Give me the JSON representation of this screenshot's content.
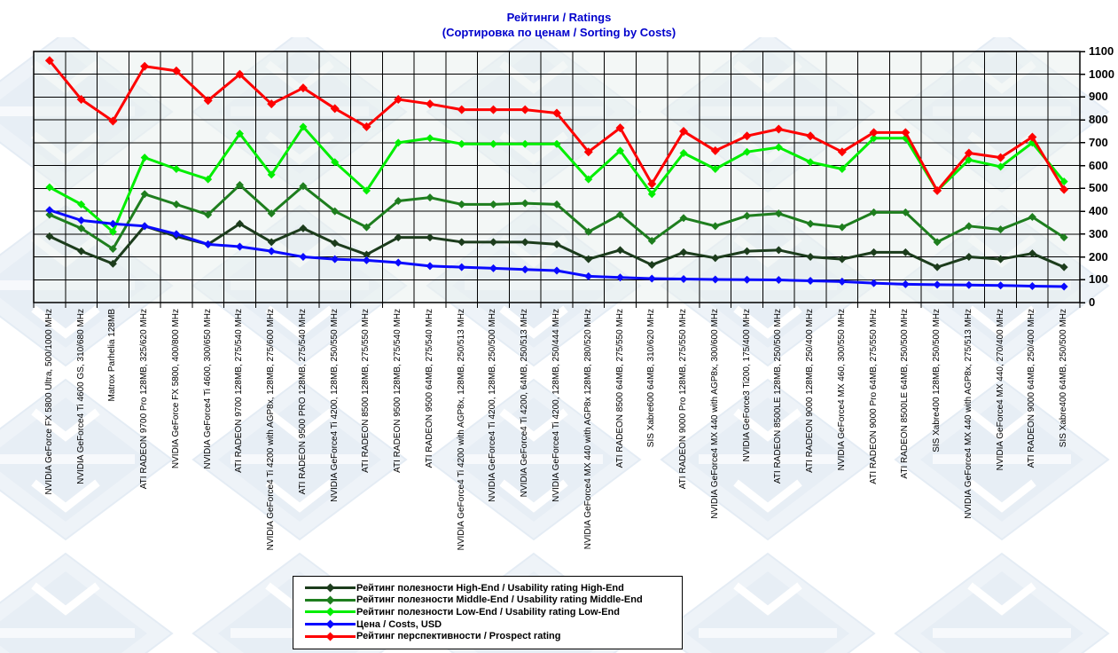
{
  "title": {
    "line1": "Рейтинги / Ratings",
    "line2": "(Сортировка по ценам / Sorting by Costs)"
  },
  "colors": {
    "title": "#0000cc",
    "grid": "#000000",
    "plot_background": "#eaf1ef",
    "watermark": "#ccdaea",
    "high_end": "#1c3c1c",
    "middle_end": "#1e7e1e",
    "low_end": "#00ee00",
    "costs": "#0a0aff",
    "prospect": "#fe0000"
  },
  "chart_data": {
    "type": "line",
    "title": "Рейтинги / Ratings (Сортировка по ценам / Sorting by Costs)",
    "grid": true,
    "legend_position": "bottom-center",
    "y_axis_side": "right",
    "ylim": [
      0,
      1100
    ],
    "yticks": [
      0,
      100,
      200,
      300,
      400,
      500,
      600,
      700,
      800,
      900,
      1000,
      1100
    ],
    "categories": [
      "NVIDIA GeForce FX 5800 Ultra, 500/1000 MHz",
      "NVIDIA GeForce4 Ti 4600 GS, 310/680 MHz",
      "Matrox Parhelia 128MB",
      "ATI RADEON 9700 Pro 128MB, 325/620 MHz",
      "NVIDIA GeForce FX 5800, 400/800 MHz",
      "NVIDIA GeForce4 Ti 4600, 300/650 MHz",
      "ATI RADEON 9700 128MB, 275/540 MHz",
      "NVIDIA GeForce4 Ti 4200 with AGP8x, 128MB, 275/600 MHz",
      "ATI RADEON 9500 PRO 128MB, 275/540 MHz",
      "NVIDIA GeForce4 Ti 4200, 128MB, 250/550 MHz",
      "ATI RADEON 8500 128MB, 275/550 MHz",
      "ATI RADEON 9500 128MB, 275/540 MHz",
      "ATI RADEON 9500 64MB, 275/540 MHz",
      "NVIDIA GeForce4 Ti 4200 with AGP8x, 128MB, 250/513 MHz",
      "NVIDIA GeForce4 Ti 4200, 128MB, 250/500 MHz",
      "NVIDIA GeForce4 Ti 4200, 64MB, 250/513 MHz",
      "NVIDIA GeForce4 Ti 4200, 128MB, 250/444 MHz",
      "NVIDIA GeForce4 MX 440 with AGP8x 128MB, 280/520 MHz",
      "ATI RADEON 8500 64MB, 275/550 MHz",
      "SIS Xabre600 64MB, 310/620 MHz",
      "ATI RADEON 9000 Pro 128MB, 275/550 MHz",
      "NVIDIA GeForce4 MX 440 with AGP8x, 300/600 MHz",
      "NVIDIA GeForce3 Ti200, 175/400 MHz",
      "ATI RADEON 8500LE 128MB, 250/500 MHz",
      "ATI RADEON 9000 128MB, 250/400 MHz",
      "NVIDIA GeForce4 MX 460, 300/550 MHz",
      "ATI RADEON 9000 Pro 64MB, 275/550 MHz",
      "ATI RADEON 8500LE 64MB, 250/500 MHz",
      "SIS Xabre400 128MB, 250/500 MHz",
      "NVIDIA GeForce4 MX 440 with AGP8x, 275/513 MHz",
      "NVIDIA GeForce4 MX 440, 270/400 MHz",
      "ATI RADEON 9000 64MB, 250/400 MHz",
      "SIS Xabre400 64MB, 250/500 MHz"
    ],
    "series": [
      {
        "key": "high-end",
        "name": "Рейтинг полезности High-End / Usability rating High-End",
        "color": "#1c3c1c",
        "marker_size": 4.5,
        "values": [
          290,
          225,
          170,
          335,
          290,
          255,
          345,
          265,
          325,
          260,
          210,
          285,
          285,
          265,
          265,
          265,
          255,
          190,
          230,
          165,
          220,
          195,
          225,
          230,
          200,
          190,
          220,
          220,
          155,
          200,
          190,
          215,
          155
        ]
      },
      {
        "key": "middle-end",
        "name": "Рейтинг полезности Middle-End / Usability rating Middle-End",
        "color": "#1e7e1e",
        "marker_size": 4.5,
        "values": [
          385,
          325,
          235,
          475,
          430,
          385,
          515,
          390,
          510,
          400,
          330,
          445,
          460,
          430,
          430,
          435,
          430,
          310,
          385,
          270,
          370,
          335,
          380,
          390,
          345,
          330,
          395,
          395,
          265,
          335,
          320,
          375,
          285
        ]
      },
      {
        "key": "low-end",
        "name": "Рейтинг полезности Low-End / Usability rating Low-End",
        "color": "#00ee00",
        "marker_size": 4.5,
        "values": [
          505,
          430,
          310,
          635,
          585,
          540,
          740,
          560,
          770,
          615,
          490,
          700,
          720,
          695,
          695,
          695,
          695,
          540,
          665,
          475,
          655,
          585,
          660,
          680,
          615,
          585,
          720,
          720,
          490,
          625,
          595,
          700,
          530
        ]
      },
      {
        "key": "costs",
        "name": "Цена / Costs, USD",
        "color": "#0a0aff",
        "marker_size": 4.5,
        "values": [
          405,
          360,
          345,
          335,
          300,
          255,
          245,
          225,
          200,
          190,
          185,
          175,
          160,
          155,
          150,
          145,
          140,
          115,
          110,
          105,
          103,
          101,
          100,
          99,
          95,
          92,
          85,
          80,
          78,
          77,
          75,
          72,
          70
        ]
      },
      {
        "key": "prospect",
        "name": "Рейтинг перспективности / Prospect rating",
        "color": "#fe0000",
        "marker_size": 5,
        "values": [
          1060,
          890,
          795,
          1035,
          1015,
          885,
          1000,
          870,
          940,
          850,
          770,
          890,
          870,
          845,
          845,
          845,
          830,
          660,
          765,
          520,
          750,
          665,
          730,
          760,
          730,
          660,
          745,
          745,
          490,
          655,
          635,
          725,
          495
        ]
      }
    ]
  }
}
